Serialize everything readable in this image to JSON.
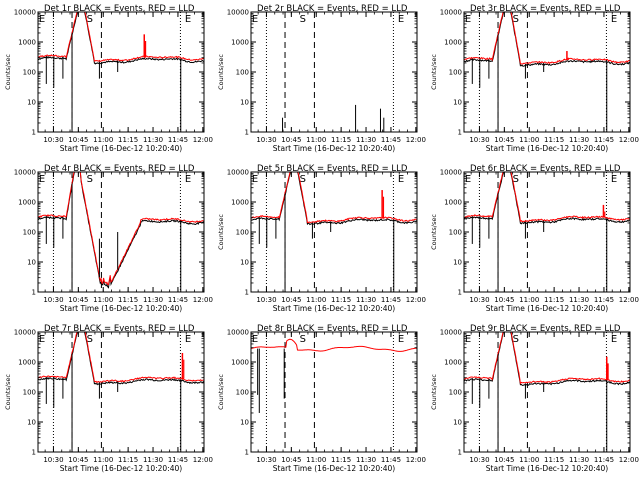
{
  "figure": {
    "x_axis": {
      "ticks": [
        "10:30",
        "10:45",
        "11:00",
        "11:15",
        "11:30",
        "11:45",
        "12:00"
      ],
      "label": "Start Time (16-Dec-12 10:20:40)",
      "range_minutes_from_start": [
        0,
        100
      ]
    },
    "y_axis": {
      "scale": "log",
      "range": [
        1,
        10000
      ],
      "ticks": [
        "1",
        "10",
        "100",
        "1000",
        "10000"
      ],
      "label": "Counts/sec"
    },
    "series_colors": {
      "events": "#000000",
      "lld": "#ff0000"
    },
    "marker_lines": {
      "dotted_minutes": [
        9.3,
        85.8
      ],
      "dashed_minutes": [
        20.5,
        38.2
      ]
    },
    "marker_labels": [
      "E",
      "S",
      "E"
    ]
  },
  "chart_data": [
    {
      "type": "line",
      "title": "Det 1r BLACK = Events, RED = LLD",
      "ylabel": "Counts/sec",
      "xlabel": "Start Time (16-Dec-12 10:20:40)",
      "profile": "flare",
      "baseline": 300,
      "lld_spike": [
        64,
        1800
      ]
    },
    {
      "type": "line",
      "title": "Det 2r BLACK = Events, RED = LLD",
      "ylabel": "Counts/sec",
      "xlabel": "Start Time (16-Dec-12 10:20:40)",
      "profile": "empty",
      "baseline": 0
    },
    {
      "type": "line",
      "title": "Det 3r BLACK = Events, RED = LLD",
      "ylabel": "Counts/sec",
      "xlabel": "Start Time (16-Dec-12 10:20:40)",
      "profile": "flare",
      "baseline": 250,
      "lld_spike": [
        62,
        500
      ]
    },
    {
      "type": "line",
      "title": "Det 4r BLACK = Events, RED = LLD",
      "ylabel": "",
      "xlabel": "Start Time (16-Dec-12 10:20:40)",
      "profile": "dip",
      "baseline": 300
    },
    {
      "type": "line",
      "title": "Det 5r BLACK = Events, RED = LLD",
      "ylabel": "Counts/sec",
      "xlabel": "Start Time (16-Dec-12 10:20:40)",
      "profile": "flare",
      "baseline": 280,
      "lld_spike": [
        79,
        2500
      ]
    },
    {
      "type": "line",
      "title": "Det 6r BLACK = Events, RED = LLD",
      "ylabel": "Counts/sec",
      "xlabel": "Start Time (16-Dec-12 10:20:40)",
      "profile": "flare",
      "baseline": 300,
      "lld_spike": [
        84,
        800
      ]
    },
    {
      "type": "line",
      "title": "Det 7r BLACK = Events, RED = LLD",
      "ylabel": "Counts/sec",
      "xlabel": "Start Time (16-Dec-12 10:20:40)",
      "profile": "flare",
      "baseline": 280,
      "lld_spike": [
        87,
        2000
      ]
    },
    {
      "type": "line",
      "title": "Det 8r BLACK = Events, RED = LLD",
      "ylabel": "Counts/sec",
      "xlabel": "Start Time (16-Dec-12 10:20:40)",
      "profile": "lldonly",
      "baseline": 2800
    },
    {
      "type": "line",
      "title": "Det 9r BLACK = Events, RED = LLD",
      "ylabel": "Counts/sec",
      "xlabel": "Start Time (16-Dec-12 10:20:40)",
      "profile": "flare",
      "baseline": 260,
      "lld_spike": [
        86,
        1500
      ]
    }
  ]
}
